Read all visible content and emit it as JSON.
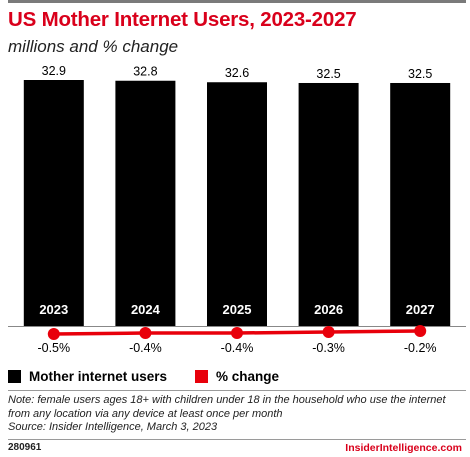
{
  "title": "US Mother Internet Users, 2023-2027",
  "subtitle": "millions and % change",
  "chart_data": {
    "type": "bar",
    "categories": [
      "2023",
      "2024",
      "2025",
      "2026",
      "2027"
    ],
    "series": [
      {
        "name": "Mother internet users",
        "type": "bar",
        "values": [
          32.9,
          32.8,
          32.6,
          32.5,
          32.5
        ],
        "labels": [
          "32.9",
          "32.8",
          "32.6",
          "32.5",
          "32.5"
        ]
      },
      {
        "name": "% change",
        "type": "line",
        "values": [
          -0.5,
          -0.4,
          -0.4,
          -0.3,
          -0.2
        ],
        "labels": [
          "-0.5%",
          "-0.4%",
          "-0.4%",
          "-0.3%",
          "-0.2%"
        ]
      }
    ],
    "bar_color": "#000000",
    "line_color": "#e8000b",
    "ylim": [
      0,
      32.9
    ],
    "line_ylim": [
      -0.5,
      0
    ],
    "grid": false,
    "legend": "bottom-left"
  },
  "legend": {
    "items": [
      {
        "label": "Mother internet users",
        "color": "#000000"
      },
      {
        "label": "% change",
        "color": "#e8000b"
      }
    ]
  },
  "notes": {
    "note": "Note: female users ages 18+ with children under 18 in the household who use the internet from any location via any device at least once per month",
    "source": "Source: Insider Intelligence, March 3, 2023"
  },
  "footer": {
    "chart_id": "280961",
    "brand": "InsiderIntelligence.com"
  }
}
